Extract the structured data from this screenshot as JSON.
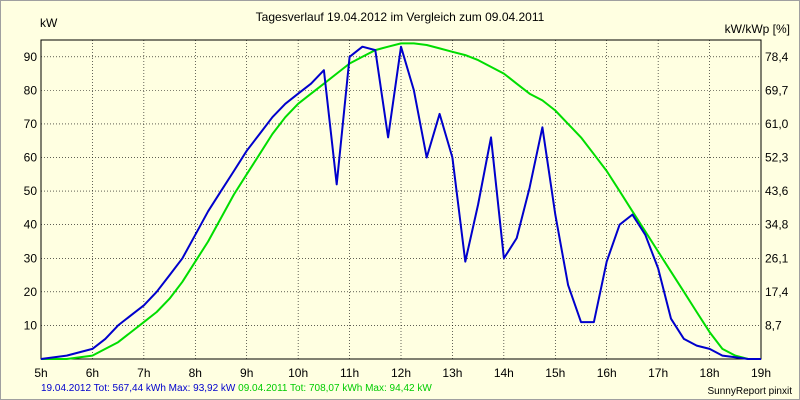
{
  "chart_data": {
    "type": "line",
    "title": "Tagesverlauf 19.04.2012 im Vergleich zum 09.04.2011",
    "ylabel_left": "kW",
    "ylabel_right": "kW/kWp [%]",
    "xlim": [
      5,
      19
    ],
    "ylim": [
      0,
      95
    ],
    "x_ticks": [
      5,
      6,
      7,
      8,
      9,
      10,
      11,
      12,
      13,
      14,
      15,
      16,
      17,
      18,
      19
    ],
    "x_tick_labels": [
      "5h",
      "6h",
      "7h",
      "8h",
      "9h",
      "10h",
      "11h",
      "12h",
      "13h",
      "14h",
      "15h",
      "16h",
      "17h",
      "18h",
      "19h"
    ],
    "y_left_ticks": [
      10,
      20,
      30,
      40,
      50,
      60,
      70,
      80,
      90
    ],
    "y_left_tick_labels": [
      "10",
      "20",
      "30",
      "40",
      "50",
      "60",
      "70",
      "80",
      "90"
    ],
    "y_right_ticks": [
      10,
      20,
      30,
      40,
      50,
      60,
      70,
      80,
      90
    ],
    "y_right_tick_labels": [
      "8,7",
      "17,4",
      "26,1",
      "34,8",
      "43,6",
      "52,3",
      "61,0",
      "69,7",
      "78,4"
    ],
    "grid": true,
    "series": [
      {
        "name": "19.04.2012",
        "color": "#0000cc",
        "x": [
          5.0,
          5.5,
          6.0,
          6.25,
          6.5,
          6.75,
          7.0,
          7.25,
          7.5,
          7.75,
          8.0,
          8.25,
          8.5,
          8.75,
          9.0,
          9.25,
          9.5,
          9.75,
          10.0,
          10.25,
          10.5,
          10.75,
          11.0,
          11.25,
          11.5,
          11.75,
          12.0,
          12.25,
          12.5,
          12.75,
          13.0,
          13.25,
          13.5,
          13.75,
          14.0,
          14.25,
          14.5,
          14.75,
          15.0,
          15.25,
          15.5,
          15.75,
          16.0,
          16.25,
          16.5,
          16.75,
          17.0,
          17.25,
          17.5,
          17.75,
          18.0,
          18.25,
          18.5,
          18.75,
          19.0
        ],
        "values": [
          0,
          1,
          3,
          6,
          10,
          13,
          16,
          20,
          25,
          30,
          37,
          44,
          50,
          56,
          62,
          67,
          72,
          76,
          79,
          82,
          86,
          52,
          90,
          93,
          92,
          66,
          93,
          80,
          60,
          73,
          60,
          29,
          46,
          66,
          30,
          36,
          51,
          69,
          43,
          22,
          11,
          11,
          29,
          40,
          43,
          37,
          27,
          12,
          6,
          4,
          3,
          1,
          0.5,
          0,
          0
        ]
      },
      {
        "name": "09.04.2011",
        "color": "#00dd00",
        "x": [
          5.0,
          5.5,
          6.0,
          6.25,
          6.5,
          6.75,
          7.0,
          7.25,
          7.5,
          7.75,
          8.0,
          8.25,
          8.5,
          8.75,
          9.0,
          9.25,
          9.5,
          9.75,
          10.0,
          10.25,
          10.5,
          10.75,
          11.0,
          11.25,
          11.5,
          11.75,
          12.0,
          12.25,
          12.5,
          12.75,
          13.0,
          13.25,
          13.5,
          13.75,
          14.0,
          14.25,
          14.5,
          14.75,
          15.0,
          15.25,
          15.5,
          15.75,
          16.0,
          16.25,
          16.5,
          16.75,
          17.0,
          17.25,
          17.5,
          17.75,
          18.0,
          18.25,
          18.5,
          18.75,
          19.0
        ],
        "values": [
          0,
          0,
          1,
          3,
          5,
          8,
          11,
          14,
          18,
          23,
          29,
          35,
          42,
          49,
          55,
          61,
          67,
          72,
          76,
          79,
          82,
          85,
          88,
          90,
          92,
          93,
          94,
          94,
          93.5,
          92.5,
          91.5,
          90.5,
          89,
          87,
          85,
          82,
          79,
          77,
          74,
          70,
          66,
          61,
          56,
          50,
          44,
          38,
          32,
          26,
          20,
          14,
          8,
          3,
          1,
          0,
          0
        ]
      }
    ]
  },
  "footer": {
    "series1_text": "19.04.2012 Tot: 567,44 kWh Max: 93,92 kW",
    "series2_text": " 09.04.2011 Tot: 708,07 kWh Max: 94,42 kW",
    "credit": "SunnyReport pinxit"
  }
}
